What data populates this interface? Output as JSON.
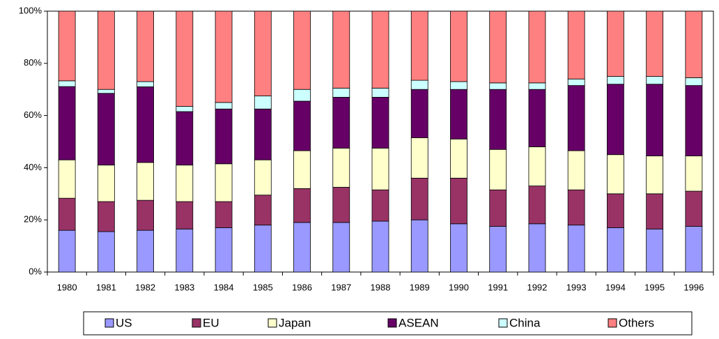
{
  "chart_data": {
    "type": "stacked_bar",
    "categories": [
      "1980",
      "1981",
      "1982",
      "1983",
      "1984",
      "1985",
      "1986",
      "1987",
      "1988",
      "1989",
      "1990",
      "1991",
      "1992",
      "1993",
      "1994",
      "1995",
      "1996"
    ],
    "series": [
      {
        "name": "US",
        "color": "#9999ff",
        "values": [
          16,
          15.5,
          16,
          16.5,
          17,
          18,
          19,
          19,
          19.5,
          20,
          18.5,
          17.5,
          18.5,
          18,
          17,
          16.5,
          17.5
        ]
      },
      {
        "name": "EU",
        "color": "#993366",
        "values": [
          12.3,
          11.5,
          11.5,
          10.5,
          10,
          11.5,
          13,
          13.5,
          12,
          16,
          17.5,
          14,
          14.5,
          13.5,
          13,
          13.5,
          13.5
        ]
      },
      {
        "name": "Japan",
        "color": "#ffffcc",
        "values": [
          14.7,
          14,
          14.5,
          14,
          14.5,
          13.5,
          14.5,
          15,
          16,
          15.5,
          15,
          15.5,
          15,
          15,
          15,
          14.5,
          13.5
        ]
      },
      {
        "name": "ASEAN",
        "color": "#660066",
        "values": [
          28.1,
          27.5,
          29,
          20.5,
          21,
          19.5,
          19,
          19.5,
          19.5,
          18.5,
          19,
          23,
          22,
          25,
          27,
          27.5,
          27
        ]
      },
      {
        "name": "China",
        "color": "#ccffff",
        "values": [
          2.2,
          1.5,
          2,
          2,
          2.5,
          5,
          4.5,
          3.5,
          3.5,
          3.5,
          3,
          2.5,
          2.5,
          2.5,
          3,
          3,
          3
        ]
      },
      {
        "name": "Others",
        "color": "#ff8080",
        "values": [
          26.7,
          30,
          27,
          36.5,
          35,
          32.5,
          30,
          29.5,
          29.5,
          26.5,
          27,
          27.5,
          27.5,
          26,
          25,
          25,
          25.5
        ]
      }
    ],
    "ylim": [
      0,
      100
    ],
    "yticks": [
      {
        "value": 0,
        "label": "0%"
      },
      {
        "value": 20,
        "label": "20%"
      },
      {
        "value": 40,
        "label": "40%"
      },
      {
        "value": 60,
        "label": "60%"
      },
      {
        "value": 80,
        "label": "80%"
      },
      {
        "value": 100,
        "label": "100%"
      }
    ],
    "grid": false,
    "legend": "bottom"
  }
}
